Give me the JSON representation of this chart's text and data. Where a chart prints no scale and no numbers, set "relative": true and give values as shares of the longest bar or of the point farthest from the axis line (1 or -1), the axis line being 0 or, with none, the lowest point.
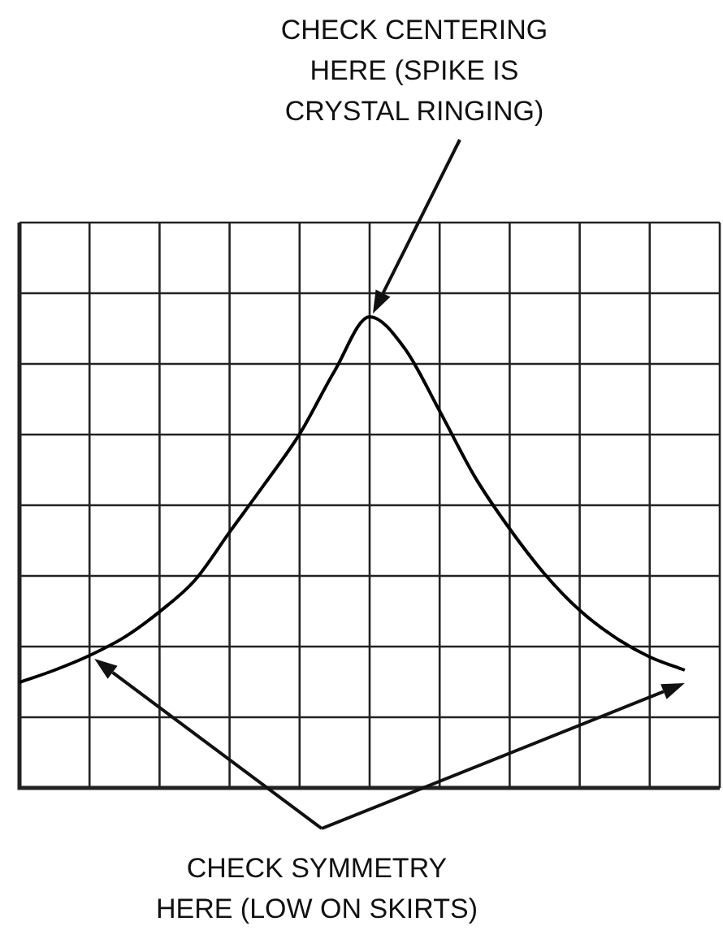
{
  "chart_data": {
    "type": "line",
    "relative": true,
    "grid": true,
    "marker": "none",
    "line_style": "solid",
    "color": "#000000",
    "categories": [
      null,
      null,
      null,
      null,
      null,
      null,
      null,
      null,
      null,
      null,
      null,
      null,
      null,
      null,
      null,
      null,
      null,
      null,
      null,
      null,
      null
    ],
    "values": [
      0.224,
      0.25,
      0.281,
      0.32,
      0.374,
      0.44,
      0.543,
      0.645,
      0.751,
      0.885,
      1,
      0.933,
      0.8,
      0.661,
      0.55,
      0.454,
      0.377,
      0.32,
      0.278,
      0.25,
      null
    ],
    "annotations": [
      "CHECK CENTERING\nHERE (SPIKE IS\nCRYSTAL RINGING)",
      "CHECK SYMMETRY\nHERE (LOW ON SKIRTS)"
    ]
  }
}
